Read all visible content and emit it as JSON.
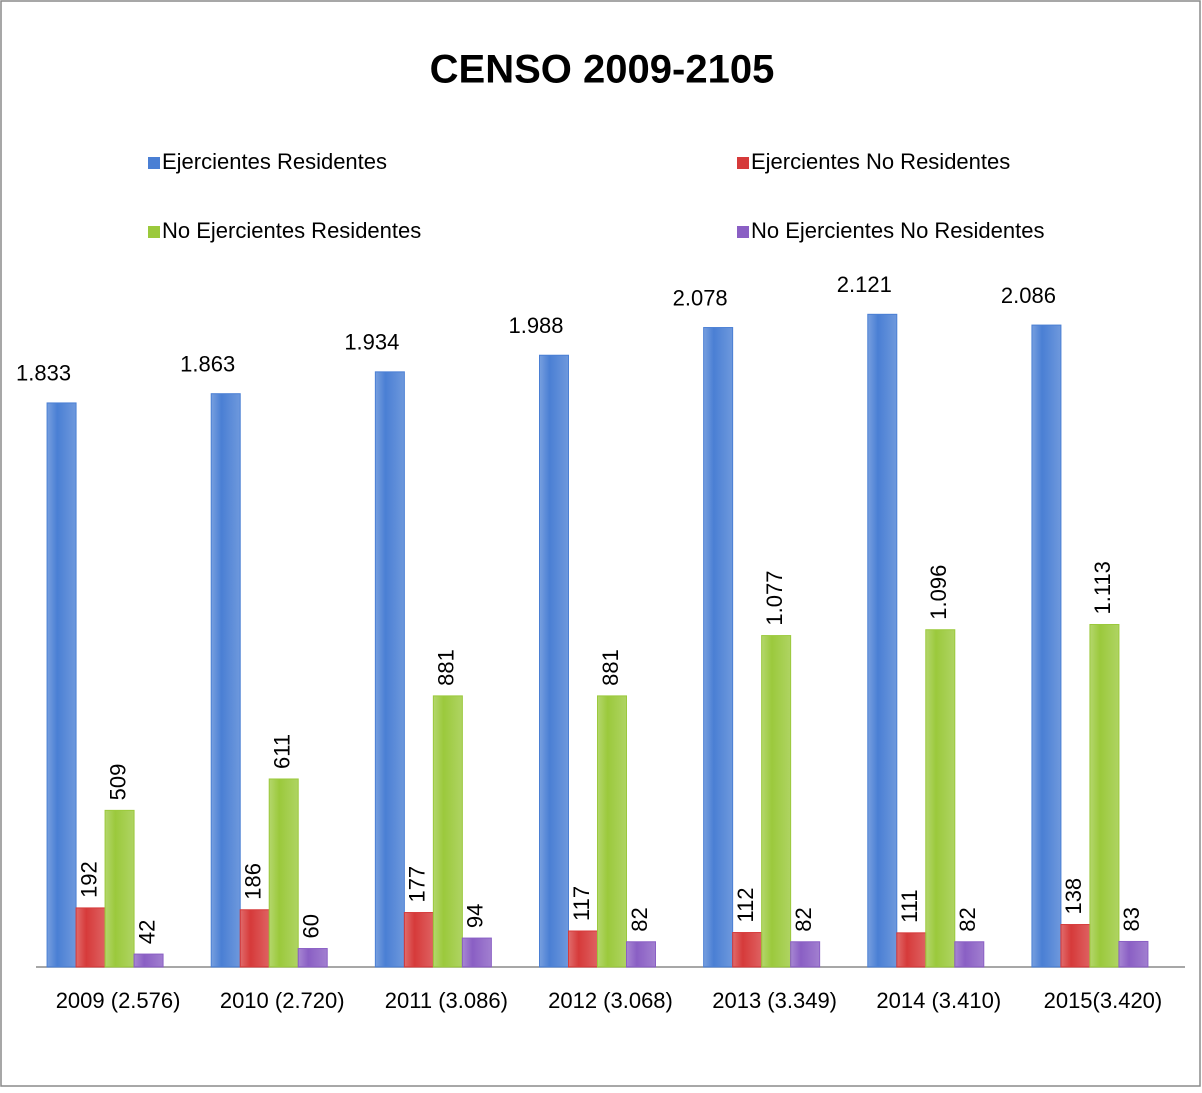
{
  "chart_data": {
    "type": "bar",
    "title": "CENSO 2009-2105",
    "categories": [
      "2009 (2.576)",
      "2010 (2.720)",
      "2011 (3.086)",
      "2012 (3.068)",
      "2013 (3.349)",
      "2014 (3.410)",
      "2015(3.420)"
    ],
    "series": [
      {
        "name": "Ejercientes Residentes",
        "color": "#4a7fd4",
        "values": [
          1833,
          1863,
          1934,
          1988,
          2078,
          2121,
          2086
        ],
        "value_labels": [
          "1.833",
          "1.863",
          "1.934",
          "1.988",
          "2.078",
          "2.121",
          "2.086"
        ]
      },
      {
        "name": "Ejercientes No Residentes",
        "color": "#d63a3a",
        "values": [
          192,
          186,
          177,
          117,
          112,
          111,
          138
        ],
        "value_labels": [
          "192",
          "186",
          "177",
          "117",
          "112",
          "111",
          "138"
        ]
      },
      {
        "name": "No Ejercientes Residentes",
        "color": "#9bc93c",
        "values": [
          509,
          611,
          881,
          881,
          1077,
          1096,
          1113
        ],
        "value_labels": [
          "509",
          "611",
          "881",
          "881",
          "1.077",
          "1.096",
          "1.113"
        ]
      },
      {
        "name": "No Ejercientes No Residentes",
        "color": "#8a5fc4",
        "values": [
          42,
          60,
          94,
          82,
          82,
          82,
          83
        ],
        "value_labels": [
          "42",
          "60",
          "94",
          "82",
          "82",
          "82",
          "83"
        ]
      }
    ],
    "ylim": [
      0,
      2200
    ]
  }
}
